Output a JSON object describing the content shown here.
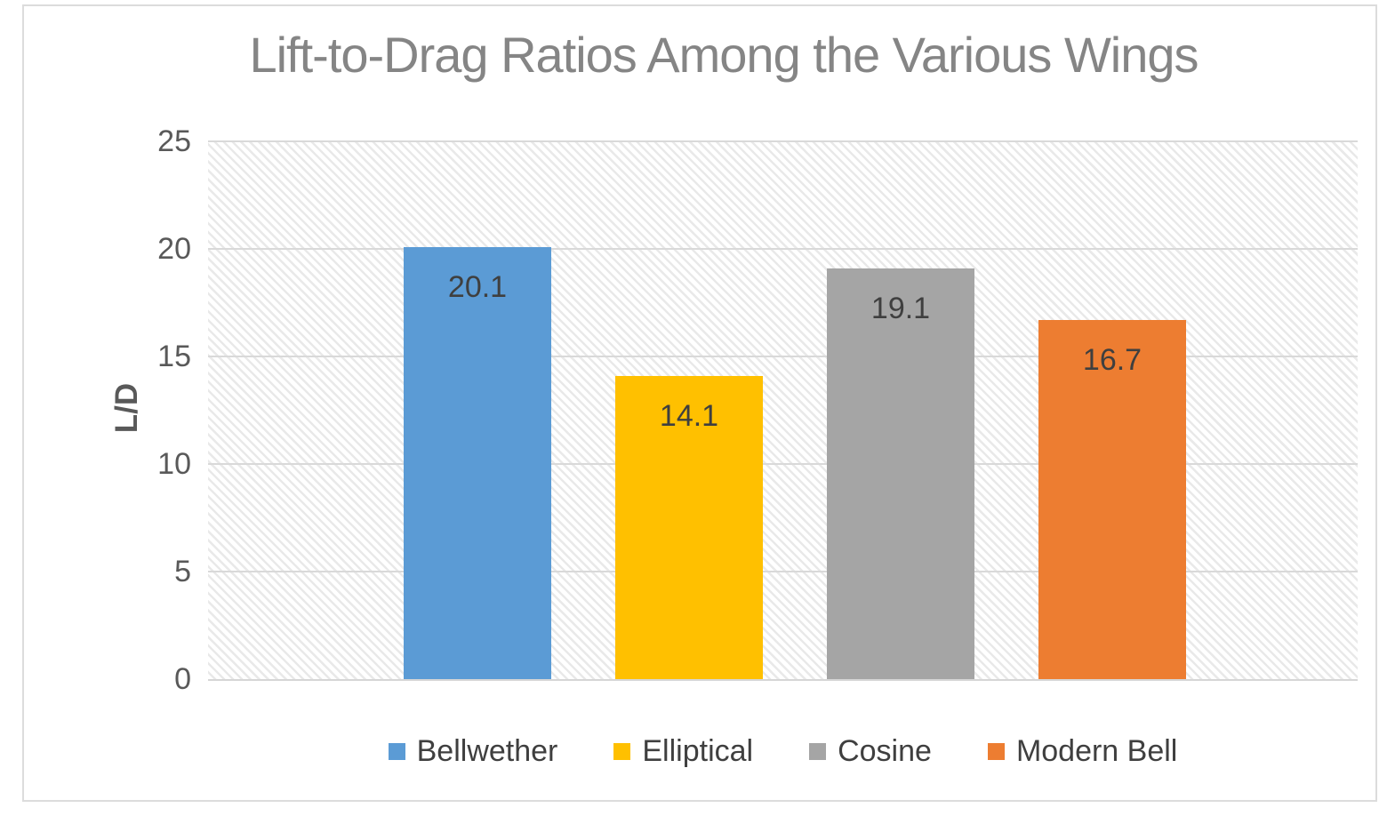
{
  "chart_data": {
    "type": "bar",
    "title": "Lift-to-Drag Ratios Among the Various Wings",
    "xlabel": "",
    "ylabel": "L/D",
    "ylim": [
      0,
      25
    ],
    "yticks": [
      0,
      5,
      10,
      15,
      20,
      25
    ],
    "grid": true,
    "legend_position": "bottom",
    "plot_background": "diagonal-hatch",
    "series": [
      {
        "name": "Bellwether",
        "value": 20.1,
        "label": "20.1",
        "color": "#5B9BD5"
      },
      {
        "name": "Elliptical",
        "value": 14.1,
        "label": "14.1",
        "color": "#FFC000"
      },
      {
        "name": "Cosine",
        "value": 19.1,
        "label": "19.1",
        "color": "#A5A5A5"
      },
      {
        "name": "Modern Bell",
        "value": 16.7,
        "label": "16.7",
        "color": "#ED7D31"
      }
    ]
  },
  "colors": {
    "title_text": "#858585",
    "tick_text": "#595959",
    "axis_title_text": "#595959",
    "data_label_text": "#3F3F3F",
    "legend_text": "#3F3F3F",
    "gridline": "#D9D9D9",
    "axis_line": "#D6D6D6",
    "chart_border": "#DCDCDC",
    "hatch_line": "#E9E9E9"
  }
}
